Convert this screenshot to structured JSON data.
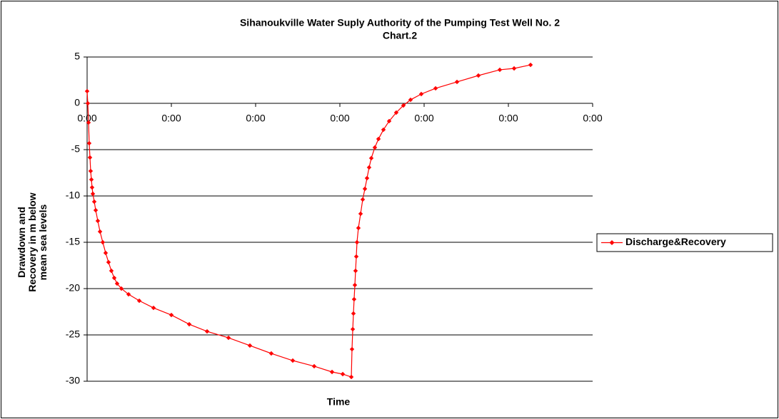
{
  "chart_data": {
    "type": "line",
    "title": "Sihanoukville Water Suply Authority of the Pumping Test Well No. 2",
    "subtitle": "Chart.2",
    "y_label": "Drawdown and Recovery in m below mean sea levels",
    "x_label": "Time",
    "ylim": [
      -30,
      5
    ],
    "yticks": [
      -30,
      -25,
      -20,
      -15,
      -10,
      -5,
      0,
      5
    ],
    "xlim": [
      0,
      6
    ],
    "xticks": [
      {
        "value": 0,
        "label": "0:00"
      },
      {
        "value": 1,
        "label": "0:00"
      },
      {
        "value": 2,
        "label": "0:00"
      },
      {
        "value": 3,
        "label": "0:00"
      },
      {
        "value": 4,
        "label": "0:00"
      },
      {
        "value": 5,
        "label": "0:00"
      },
      {
        "value": 6,
        "label": "0:00"
      }
    ],
    "grid": true,
    "legend": "right",
    "series": [
      {
        "name": "Discharge&Recovery",
        "color": "#ff0000",
        "x": [
          0,
          0.008,
          0.017,
          0.025,
          0.034,
          0.042,
          0.051,
          0.059,
          0.068,
          0.085,
          0.102,
          0.127,
          0.153,
          0.186,
          0.22,
          0.254,
          0.288,
          0.322,
          0.356,
          0.407,
          0.492,
          0.619,
          0.788,
          1.0,
          1.212,
          1.424,
          1.678,
          1.932,
          2.186,
          2.441,
          2.695,
          2.907,
          3.034,
          3.136,
          3.144,
          3.153,
          3.161,
          3.169,
          3.178,
          3.186,
          3.195,
          3.203,
          3.22,
          3.246,
          3.271,
          3.297,
          3.322,
          3.347,
          3.373,
          3.415,
          3.458,
          3.517,
          3.585,
          3.669,
          3.754,
          3.839,
          3.966,
          4.136,
          4.39,
          4.644,
          4.898,
          5.068,
          5.263
        ],
        "values": [
          1.31,
          0,
          -2.08,
          -4.31,
          -5.85,
          -7.31,
          -8.23,
          -9.08,
          -9.77,
          -10.62,
          -11.54,
          -12.69,
          -13.85,
          -15,
          -16.15,
          -17.15,
          -18.08,
          -18.85,
          -19.46,
          -20,
          -20.62,
          -21.31,
          -22.08,
          -22.85,
          -23.85,
          -24.62,
          -25.31,
          -26.15,
          -27,
          -27.77,
          -28.38,
          -29,
          -29.23,
          -29.54,
          -26.54,
          -24.38,
          -22.69,
          -21.15,
          -19.62,
          -18.08,
          -16.54,
          -15,
          -13.46,
          -11.92,
          -10.38,
          -9.23,
          -8.08,
          -6.92,
          -5.92,
          -4.77,
          -3.85,
          -2.85,
          -1.92,
          -1,
          -0.23,
          0.38,
          1,
          1.62,
          2.31,
          3,
          3.62,
          3.77,
          4.15
        ]
      }
    ]
  }
}
